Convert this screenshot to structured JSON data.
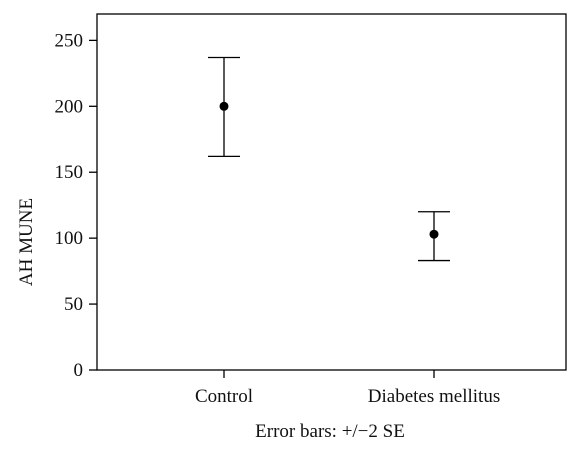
{
  "chart_data": {
    "type": "scatter",
    "categories": [
      "Control",
      "Diabetes mellitus"
    ],
    "series": [
      {
        "points": [
          {
            "category": "Control",
            "mean": 200,
            "lower": 162,
            "upper": 237
          },
          {
            "category": "Diabetes mellitus",
            "mean": 103,
            "lower": 83,
            "upper": 120
          }
        ]
      }
    ],
    "title": "",
    "xlabel": "Error bars: +/−2 SE",
    "ylabel": "AH MUNE",
    "ylim": [
      0,
      270
    ],
    "yticks": [
      0,
      50,
      100,
      150,
      200,
      250
    ],
    "ytick_labels": [
      "0",
      "50",
      "100",
      "150",
      "200",
      "250"
    ],
    "grid": false,
    "legend": "none",
    "colors": {
      "marker": "#000000",
      "axis": "#000000",
      "text": "#111111"
    }
  }
}
